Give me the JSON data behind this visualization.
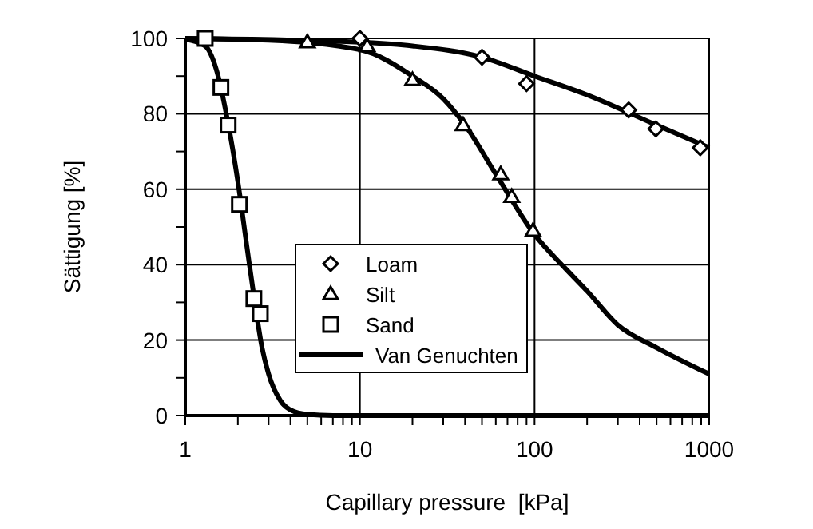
{
  "chart_data": {
    "type": "scatter",
    "xlabel": "Capillary pressure  [kPa]",
    "ylabel": "Sättigung [%]",
    "log": "x",
    "xlim": [
      1,
      1000
    ],
    "ylim": [
      0,
      100
    ],
    "xticks": [
      1,
      {
        "value": 2,
        "label": null
      },
      {
        "value": 3,
        "label": null
      },
      {
        "value": 4,
        "label": null
      },
      {
        "value": 5,
        "label": null
      },
      {
        "value": 6,
        "label": null
      },
      {
        "value": 7,
        "label": null
      },
      {
        "value": 8,
        "label": null
      },
      {
        "value": 9,
        "label": null
      },
      10,
      {
        "value": 20,
        "label": null
      },
      {
        "value": 30,
        "label": null
      },
      {
        "value": 40,
        "label": null
      },
      {
        "value": 50,
        "label": null
      },
      {
        "value": 60,
        "label": null
      },
      {
        "value": 70,
        "label": null
      },
      {
        "value": 80,
        "label": null
      },
      {
        "value": 90,
        "label": null
      },
      100,
      {
        "value": 200,
        "label": null
      },
      {
        "value": 300,
        "label": null
      },
      {
        "value": 400,
        "label": null
      },
      {
        "value": 500,
        "label": null
      },
      {
        "value": 600,
        "label": null
      },
      {
        "value": 700,
        "label": null
      },
      {
        "value": 800,
        "label": null
      },
      {
        "value": 900,
        "label": null
      },
      1000
    ],
    "yticks": [
      0,
      {
        "value": 10,
        "label": null
      },
      20,
      {
        "value": 30,
        "label": null
      },
      40,
      {
        "value": 50,
        "label": null
      },
      60,
      {
        "value": 70,
        "label": null
      },
      80,
      {
        "value": 90,
        "label": null
      },
      100
    ],
    "grid": true,
    "legend": "bottom",
    "series": [
      {
        "name": "Loam",
        "marker": "diamond",
        "color": "#000000",
        "x": [
          10,
          50,
          90,
          346,
          495,
          889
        ],
        "values": [
          100,
          95,
          88,
          81,
          76,
          71
        ]
      },
      {
        "name": "Silt",
        "marker": "triangle",
        "color": "#000000",
        "x": [
          5,
          11,
          20,
          39,
          64,
          74,
          98
        ],
        "values": [
          99,
          98,
          89,
          77,
          64,
          58,
          49
        ]
      },
      {
        "name": "Sand",
        "marker": "square",
        "color": "#000000",
        "x": [
          1.3,
          1.6,
          1.76,
          2.04,
          2.47,
          2.69
        ],
        "values": [
          100,
          87,
          77,
          56,
          31,
          27
        ]
      },
      {
        "name": "Van Genuchten",
        "type": "line",
        "marker": "none",
        "line_style": "solid",
        "color": "#000000",
        "x": [
          1,
          1.3,
          1.5,
          1.75,
          2,
          2.25,
          2.5,
          2.75,
          3,
          3.5,
          4,
          5,
          7,
          10,
          100,
          1000
        ],
        "values": [
          99.8,
          98,
          92,
          78,
          62,
          45,
          30,
          18,
          11,
          4,
          1.5,
          0.3,
          0,
          0,
          0,
          0
        ]
      },
      {
        "type": "line",
        "marker": "none",
        "line_style": "solid",
        "color": "#000000",
        "x": [
          1,
          3,
          10,
          20,
          30,
          40,
          60,
          100,
          150,
          200,
          300,
          500,
          1000
        ],
        "values": [
          100,
          99.5,
          97,
          90,
          84,
          77,
          64,
          48,
          39,
          33,
          24,
          18,
          11
        ]
      },
      {
        "type": "line",
        "marker": "none",
        "line_style": "solid",
        "color": "#000000",
        "x": [
          1,
          10,
          20,
          50,
          100,
          200,
          500,
          1000
        ],
        "values": [
          100,
          99,
          98,
          95,
          90,
          85,
          77,
          71
        ]
      }
    ]
  }
}
